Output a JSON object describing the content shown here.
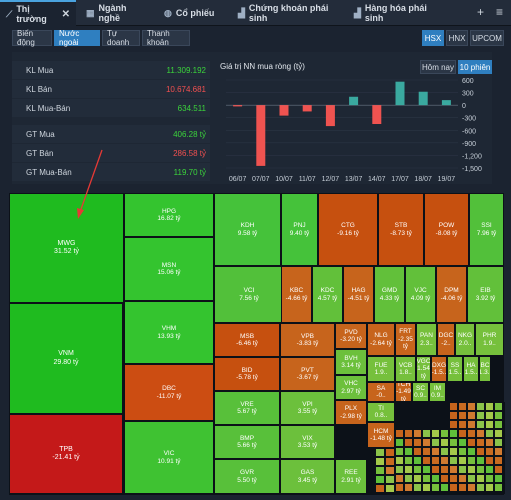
{
  "tabs": [
    {
      "label": "Thị trường",
      "icon": "pulse-icon",
      "active": true,
      "close": "✕"
    },
    {
      "label": "Ngành nghề",
      "icon": "grid-icon"
    },
    {
      "label": "Cổ phiếu",
      "icon": "globe-icon"
    },
    {
      "label": "Chứng khoán phái sinh",
      "icon": "chart-icon"
    },
    {
      "label": "Hàng hóa phái sinh",
      "icon": "chart-icon"
    }
  ],
  "topbar_icons": {
    "add": "+",
    "menu": "≡"
  },
  "subtabs": [
    "Biến động",
    "Nước ngoài",
    "Tự doanh",
    "Thanh khoản"
  ],
  "active_subtab": "Nước ngoài",
  "exchanges": [
    "HSX",
    "HNX",
    "UPCOM"
  ],
  "active_exchange": "HSX",
  "stats": [
    {
      "label": "KL Mua",
      "value": "11.309.192",
      "color": "g"
    },
    {
      "label": "KL Bán",
      "value": "10.674.681",
      "color": "r"
    },
    {
      "label": "KL Mua-Bán",
      "value": "634.511",
      "color": "g"
    },
    {
      "label": "GT Mua",
      "value": "406.28 tỷ",
      "color": "g"
    },
    {
      "label": "GT Bán",
      "value": "286.58 tỷ",
      "color": "r"
    },
    {
      "label": "GT Mua-Bán",
      "value": "119.70 tỷ",
      "color": "g"
    }
  ],
  "chart_controls": {
    "today": "Hôm nay",
    "ten_sessions": "10 phiên"
  },
  "chart_data": {
    "type": "bar",
    "title": "Giá trị NN mua ròng (tỷ)",
    "categories": [
      "06/07",
      "07/07",
      "10/07",
      "11/07",
      "12/07",
      "13/07",
      "14/07",
      "17/07",
      "18/07",
      "19/07"
    ],
    "values": [
      -30,
      -1450,
      -250,
      -150,
      -500,
      200,
      -450,
      560,
      320,
      120
    ],
    "ylim": [
      -1500,
      600
    ],
    "yticks": [
      "600",
      "300",
      "0",
      "-300",
      "-600",
      "-900",
      "-1,200",
      "-1,500"
    ],
    "colors": {
      "positive": "#3aa99f",
      "negative": "#ef5350"
    }
  },
  "treemap": [
    {
      "t": "MWG",
      "v": "31.52 tỷ",
      "c": "#1fbb1f"
    },
    {
      "t": "VNM",
      "v": "29.80 tỷ",
      "c": "#1fbb1f"
    },
    {
      "t": "TPB",
      "v": "-21.41 tỷ",
      "c": "#c41919"
    },
    {
      "t": "HPG",
      "v": "16.82 tỷ",
      "c": "#34c42f"
    },
    {
      "t": "MSN",
      "v": "15.06 tỷ",
      "c": "#34c42f"
    },
    {
      "t": "VHM",
      "v": "13.93 tỷ",
      "c": "#34c42f"
    },
    {
      "t": "DBC",
      "v": "-11.07 tỷ",
      "c": "#cc4d12"
    },
    {
      "t": "VIC",
      "v": "10.91 tỷ",
      "c": "#3fc232"
    },
    {
      "t": "KDH",
      "v": "9.58 tỷ",
      "c": "#45c23a"
    },
    {
      "t": "PNJ",
      "v": "9.40 tỷ",
      "c": "#45c23a"
    },
    {
      "t": "CTG",
      "v": "-9.16 tỷ",
      "c": "#c6500f"
    },
    {
      "t": "STB",
      "v": "-8.73 tỷ",
      "c": "#c6500f"
    },
    {
      "t": "POW",
      "v": "-8.08 tỷ",
      "c": "#c6500f"
    },
    {
      "t": "SSI",
      "v": "7.96 tỷ",
      "c": "#52c03a"
    },
    {
      "t": "VCI",
      "v": "7.56 tỷ",
      "c": "#52c03a"
    },
    {
      "t": "KBC",
      "v": "-4.66 tỷ",
      "c": "#c7641c"
    },
    {
      "t": "KDC",
      "v": "4.57 tỷ",
      "c": "#62c03a"
    },
    {
      "t": "HAG",
      "v": "-4.51 tỷ",
      "c": "#c7641c"
    },
    {
      "t": "GMD",
      "v": "4.33 tỷ",
      "c": "#62c03a"
    },
    {
      "t": "VJC",
      "v": "4.09 tỷ",
      "c": "#62c03a"
    },
    {
      "t": "DPM",
      "v": "-4.06 tỷ",
      "c": "#c7641c"
    },
    {
      "t": "EIB",
      "v": "3.92 tỷ",
      "c": "#62c03a"
    },
    {
      "t": "MSB",
      "v": "-6.46 tỷ",
      "c": "#c6500f"
    },
    {
      "t": "BID",
      "v": "-5.78 tỷ",
      "c": "#c6500f"
    },
    {
      "t": "VRE",
      "v": "5.67 tỷ",
      "c": "#58c03a"
    },
    {
      "t": "BMP",
      "v": "5.66 tỷ",
      "c": "#58c03a"
    },
    {
      "t": "GVR",
      "v": "5.50 tỷ",
      "c": "#58c03a"
    },
    {
      "t": "VPB",
      "v": "-3.83 tỷ",
      "c": "#c7641c"
    },
    {
      "t": "PVT",
      "v": "-3.67 tỷ",
      "c": "#c7641c"
    },
    {
      "t": "VPI",
      "v": "3.55 tỷ",
      "c": "#6cc03c"
    },
    {
      "t": "VIX",
      "v": "3.53 tỷ",
      "c": "#6cc03c"
    },
    {
      "t": "GAS",
      "v": "3.45 tỷ",
      "c": "#6cc03c"
    },
    {
      "t": "PVD",
      "v": "-3.20 tỷ",
      "c": "#c7641c"
    },
    {
      "t": "BVH",
      "v": "3.14 tỷ",
      "c": "#6cc03c"
    },
    {
      "t": "VHC",
      "v": "2.97 tỷ",
      "c": "#6cc03c"
    },
    {
      "t": "PLX",
      "v": "-2.98 tỷ",
      "c": "#c7641c"
    },
    {
      "t": "REE",
      "v": "2.91 tỷ",
      "c": "#6cc03c"
    },
    {
      "t": "NLG",
      "v": "-2.64 tỷ",
      "c": "#c7641c"
    },
    {
      "t": "FRT",
      "v": "-2.35 tỷ",
      "c": "#c7641c"
    },
    {
      "t": "PAN",
      "v": "2.3..",
      "c": "#76c03c"
    },
    {
      "t": "DGC",
      "v": "-2..",
      "c": "#c7641c"
    },
    {
      "t": "NKG",
      "v": "2.0..",
      "c": "#76c03c"
    },
    {
      "t": "PHR",
      "v": "1.9..",
      "c": "#76c03c"
    },
    {
      "t": "FUE",
      "v": "1.9..",
      "c": "#76c03c"
    },
    {
      "t": "VCB",
      "v": "1.8..",
      "c": "#76c03c"
    },
    {
      "t": "VGC",
      "v": "1.54 tỷ",
      "c": "#76c03c"
    },
    {
      "t": "DXG",
      "v": "-1.5..",
      "c": "#c7641c"
    },
    {
      "t": "SS",
      "v": "1.5..",
      "c": "#76c03c"
    },
    {
      "t": "HA",
      "v": "1.5..",
      "c": "#76c03c"
    },
    {
      "t": "BC",
      "v": "1.3..",
      "c": "#76c03c"
    },
    {
      "t": "SA",
      "v": "-0..",
      "c": "#c7641c"
    },
    {
      "t": "TCH",
      "v": "-1.49 tỷ",
      "c": "#c7641c"
    },
    {
      "t": "SC",
      "v": "0.9..",
      "c": "#76c03c"
    },
    {
      "t": "IM",
      "v": "0.9..",
      "c": "#76c03c"
    },
    {
      "t": "TI",
      "v": "0.8..",
      "c": "#76c03c"
    },
    {
      "t": "HCM",
      "v": "-1.48 tỷ",
      "c": "#c7641c"
    },
    {
      "t": "DHC",
      "v": "1.42 tỷ",
      "c": "#76c03c"
    }
  ]
}
